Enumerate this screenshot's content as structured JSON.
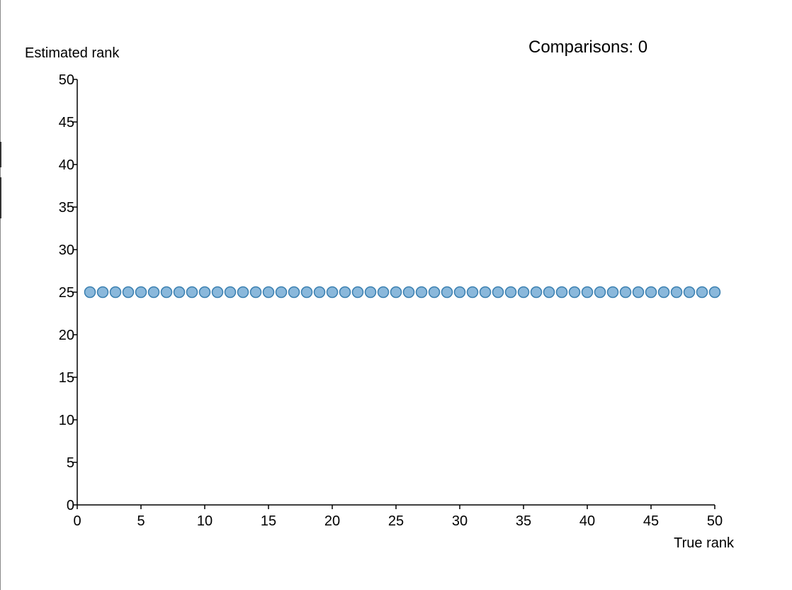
{
  "counter": {
    "label": "Comparisons:",
    "value": 0
  },
  "colors": {
    "point_fill": "#8ab8db",
    "point_stroke": "#3a7fb0",
    "axis": "#000000"
  },
  "chart_data": {
    "type": "scatter",
    "xlabel": "True rank",
    "ylabel": "Estimated rank",
    "xlim": [
      0,
      50
    ],
    "ylim": [
      0,
      50
    ],
    "x_ticks": [
      0,
      5,
      10,
      15,
      20,
      25,
      30,
      35,
      40,
      45,
      50
    ],
    "y_ticks": [
      0,
      5,
      10,
      15,
      20,
      25,
      30,
      35,
      40,
      45,
      50
    ],
    "grid": false,
    "x": [
      1,
      2,
      3,
      4,
      5,
      6,
      7,
      8,
      9,
      10,
      11,
      12,
      13,
      14,
      15,
      16,
      17,
      18,
      19,
      20,
      21,
      22,
      23,
      24,
      25,
      26,
      27,
      28,
      29,
      30,
      31,
      32,
      33,
      34,
      35,
      36,
      37,
      38,
      39,
      40,
      41,
      42,
      43,
      44,
      45,
      46,
      47,
      48,
      49,
      50
    ],
    "y": [
      25,
      25,
      25,
      25,
      25,
      25,
      25,
      25,
      25,
      25,
      25,
      25,
      25,
      25,
      25,
      25,
      25,
      25,
      25,
      25,
      25,
      25,
      25,
      25,
      25,
      25,
      25,
      25,
      25,
      25,
      25,
      25,
      25,
      25,
      25,
      25,
      25,
      25,
      25,
      25,
      25,
      25,
      25,
      25,
      25,
      25,
      25,
      25,
      25,
      25
    ]
  }
}
